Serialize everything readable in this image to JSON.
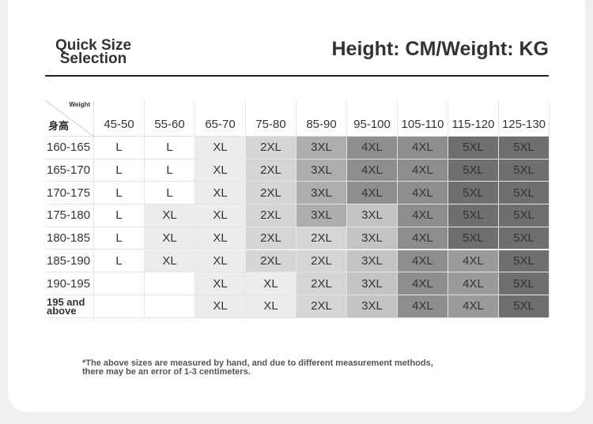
{
  "header": {
    "title": "Quick Size Selection",
    "units": "Height: CM/Weight: KG"
  },
  "table": {
    "corner_top": "Weight",
    "corner_bottom": "身高",
    "columns": [
      "45-50",
      "55-60",
      "65-70",
      "75-80",
      "85-90",
      "95-100",
      "105-110",
      "115-120",
      "125-130"
    ],
    "rows": [
      {
        "label": "160-165",
        "cells": [
          "L",
          "L",
          "XL",
          "2XL",
          "3XL",
          "4XL",
          "4XL",
          "5XL",
          "5XL"
        ]
      },
      {
        "label": "165-170",
        "cells": [
          "L",
          "L",
          "XL",
          "2XL",
          "3XL",
          "4XL",
          "4XL",
          "5XL",
          "5XL"
        ]
      },
      {
        "label": "170-175",
        "cells": [
          "L",
          "L",
          "XL",
          "2XL",
          "3XL",
          "4XL",
          "4XL",
          "5XL",
          "5XL"
        ]
      },
      {
        "label": "175-180",
        "cells": [
          "L",
          "XL",
          "XL",
          "2XL",
          "3XL",
          "3XL",
          "4XL",
          "5XL",
          "5XL"
        ]
      },
      {
        "label": "180-185",
        "cells": [
          "L",
          "XL",
          "XL",
          "2XL",
          "2XL",
          "3XL",
          "4XL",
          "5XL",
          "5XL"
        ]
      },
      {
        "label": "185-190",
        "cells": [
          "L",
          "XL",
          "XL",
          "2XL",
          "2XL",
          "3XL",
          "4XL",
          "4XL",
          "5XL"
        ]
      },
      {
        "label": "190-195",
        "cells": [
          null,
          null,
          "XL",
          "XL",
          "2XL",
          "3XL",
          "4XL",
          "4XL",
          "5XL"
        ]
      },
      {
        "label": "195 and above",
        "cells": [
          null,
          null,
          "XL",
          "XL",
          "2XL",
          "3XL",
          "4XL",
          "4XL",
          "5XL"
        ]
      }
    ],
    "cell_colors": [
      [
        "#ffffff",
        "#ffffff",
        "#ececec",
        "#d5d5d5",
        "#adadad",
        "#8e8e8e",
        "#8e8e8e",
        "#6f6f6f",
        "#6f6f6f"
      ],
      [
        "#ffffff",
        "#ffffff",
        "#ececec",
        "#d5d5d5",
        "#adadad",
        "#8e8e8e",
        "#8e8e8e",
        "#6f6f6f",
        "#6f6f6f"
      ],
      [
        "#ffffff",
        "#ffffff",
        "#ececec",
        "#d5d5d5",
        "#adadad",
        "#8e8e8e",
        "#8e8e8e",
        "#6f6f6f",
        "#6f6f6f"
      ],
      [
        "#ffffff",
        "#ececec",
        "#ececec",
        "#d5d5d5",
        "#adadad",
        "#c3c3c3",
        "#8e8e8e",
        "#6f6f6f",
        "#6f6f6f"
      ],
      [
        "#ffffff",
        "#ececec",
        "#ececec",
        "#d5d5d5",
        "#d5d5d5",
        "#c3c3c3",
        "#8e8e8e",
        "#6f6f6f",
        "#6f6f6f"
      ],
      [
        "#ffffff",
        "#ececec",
        "#ececec",
        "#d5d5d5",
        "#d5d5d5",
        "#c3c3c3",
        "#8e8e8e",
        "#9a9a9a",
        "#6f6f6f"
      ],
      [
        "#ffffff",
        "#ffffff",
        "#ececec",
        "#ececec",
        "#d5d5d5",
        "#c3c3c3",
        "#8e8e8e",
        "#9a9a9a",
        "#6f6f6f"
      ],
      [
        "#ffffff",
        "#ffffff",
        "#ececec",
        "#ececec",
        "#d5d5d5",
        "#c3c3c3",
        "#8e8e8e",
        "#9a9a9a",
        "#6f6f6f"
      ]
    ]
  },
  "footnote": "*The above sizes are measured by hand, and due to different measurement methods, there may be an error of 1-3 centimeters."
}
